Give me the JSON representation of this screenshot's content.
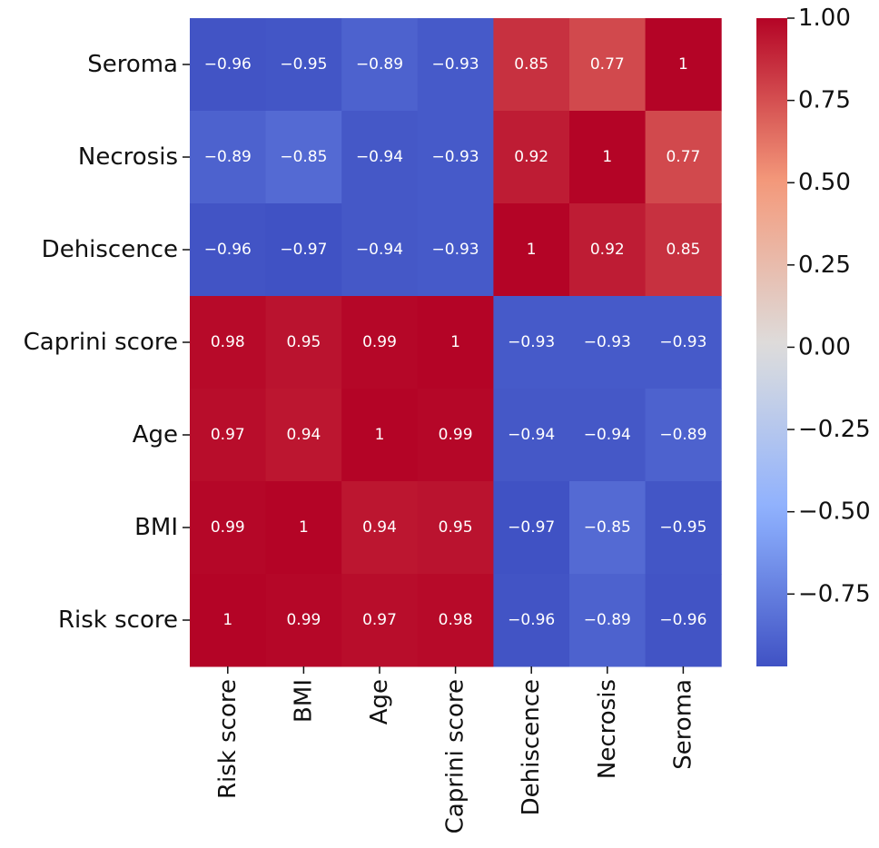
{
  "chart_data": {
    "type": "heatmap",
    "title": "",
    "xlabel": "",
    "ylabel": "",
    "x_categories": [
      "Risk score",
      "BMI",
      "Age",
      "Caprini score",
      "Dehiscence",
      "Necrosis",
      "Seroma"
    ],
    "y_categories_top_to_bottom": [
      "Seroma",
      "Necrosis",
      "Dehiscence",
      "Caprini score",
      "Age",
      "BMI",
      "Risk score"
    ],
    "values_top_to_bottom": [
      [
        -0.96,
        -0.95,
        -0.89,
        -0.93,
        0.85,
        0.77,
        1
      ],
      [
        -0.89,
        -0.85,
        -0.94,
        -0.93,
        0.92,
        1,
        0.77
      ],
      [
        -0.96,
        -0.97,
        -0.94,
        -0.93,
        1,
        0.92,
        0.85
      ],
      [
        0.98,
        0.95,
        0.99,
        1,
        -0.93,
        -0.93,
        -0.93
      ],
      [
        0.97,
        0.94,
        1,
        0.99,
        -0.94,
        -0.94,
        -0.89
      ],
      [
        0.99,
        1,
        0.94,
        0.95,
        -0.97,
        -0.85,
        -0.95
      ],
      [
        1,
        0.99,
        0.97,
        0.98,
        -0.96,
        -0.89,
        -0.96
      ]
    ],
    "cell_labels_top_to_bottom": [
      [
        "−0.96",
        "−0.95",
        "−0.89",
        "−0.93",
        "0.85",
        "0.77",
        "1"
      ],
      [
        "−0.89",
        "−0.85",
        "−0.94",
        "−0.93",
        "0.92",
        "1",
        "0.77"
      ],
      [
        "−0.96",
        "−0.97",
        "−0.94",
        "−0.93",
        "1",
        "0.92",
        "0.85"
      ],
      [
        "0.98",
        "0.95",
        "0.99",
        "1",
        "−0.93",
        "−0.93",
        "−0.93"
      ],
      [
        "0.97",
        "0.94",
        "1",
        "0.99",
        "−0.94",
        "−0.94",
        "−0.89"
      ],
      [
        "0.99",
        "1",
        "0.94",
        "0.95",
        "−0.97",
        "−0.85",
        "−0.95"
      ],
      [
        "1",
        "0.99",
        "0.97",
        "0.98",
        "−0.96",
        "−0.89",
        "−0.96"
      ]
    ],
    "colormap": "coolwarm",
    "colormap_stops": [
      {
        "value": -1.0,
        "color": "#3b4cc0"
      },
      {
        "value": -0.5,
        "color": "#8db0fe"
      },
      {
        "value": 0.0,
        "color": "#dddddd"
      },
      {
        "value": 0.5,
        "color": "#f49a7b"
      },
      {
        "value": 1.0,
        "color": "#b40426"
      }
    ],
    "colorbar": {
      "range": [
        -0.97,
        1.0
      ],
      "ticks": [
        1.0,
        0.75,
        0.5,
        0.25,
        0.0,
        -0.25,
        -0.5,
        -0.75
      ],
      "tick_labels": [
        "1.00",
        "0.75",
        "0.50",
        "0.25",
        "0.00",
        "−0.25",
        "−0.50",
        "−0.75"
      ]
    },
    "legend_placement": "right",
    "grid": false
  }
}
